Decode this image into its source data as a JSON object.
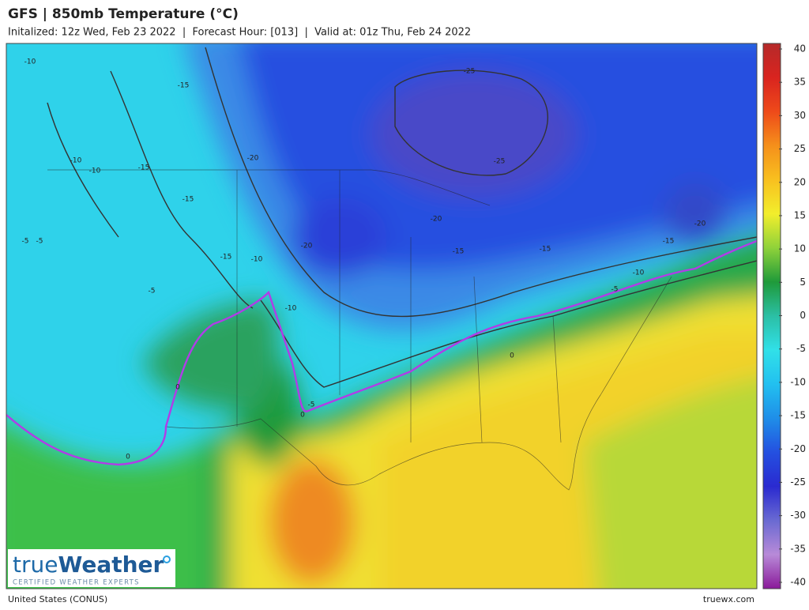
{
  "header": {
    "title": "GFS | 850mb Temperature (°C)",
    "subtitle": "Initalized: 12z Wed, Feb 23 2022  |  Forecast Hour: [013]  |  Valid at: 01z Thu, Feb 24 2022"
  },
  "map": {
    "contour_labels": [
      -10,
      -15,
      -10,
      -15,
      -10,
      -5,
      -15,
      -20,
      -25,
      -25,
      -20,
      -20,
      -15,
      -15,
      -10,
      -5,
      -20,
      -15,
      -10,
      -5,
      0,
      0,
      0,
      -5,
      -10,
      -15,
      -5,
      0
    ]
  },
  "legend": {
    "ticks": [
      40,
      35,
      30,
      25,
      20,
      15,
      10,
      5,
      0,
      -5,
      -10,
      -15,
      -20,
      -25,
      -30,
      -35,
      -40
    ],
    "colors": [
      "#b52a2a",
      "#d9241f",
      "#ee4a1a",
      "#f5901b",
      "#f8c01f",
      "#f2ee2c",
      "#8fd23a",
      "#1f9a3a",
      "#2bbfa5",
      "#31e0e8",
      "#22c0f0",
      "#1f8ee8",
      "#2450e0",
      "#2a2ad0",
      "#6a6ad2",
      "#b88ad8",
      "#8a1a9a"
    ]
  },
  "logo": {
    "brand_light": "true",
    "brand_bold": "Weather",
    "tagline": "CERTIFIED WEATHER EXPERTS"
  },
  "footer": {
    "region": "United States (CONUS)",
    "site": "truewx.com"
  }
}
